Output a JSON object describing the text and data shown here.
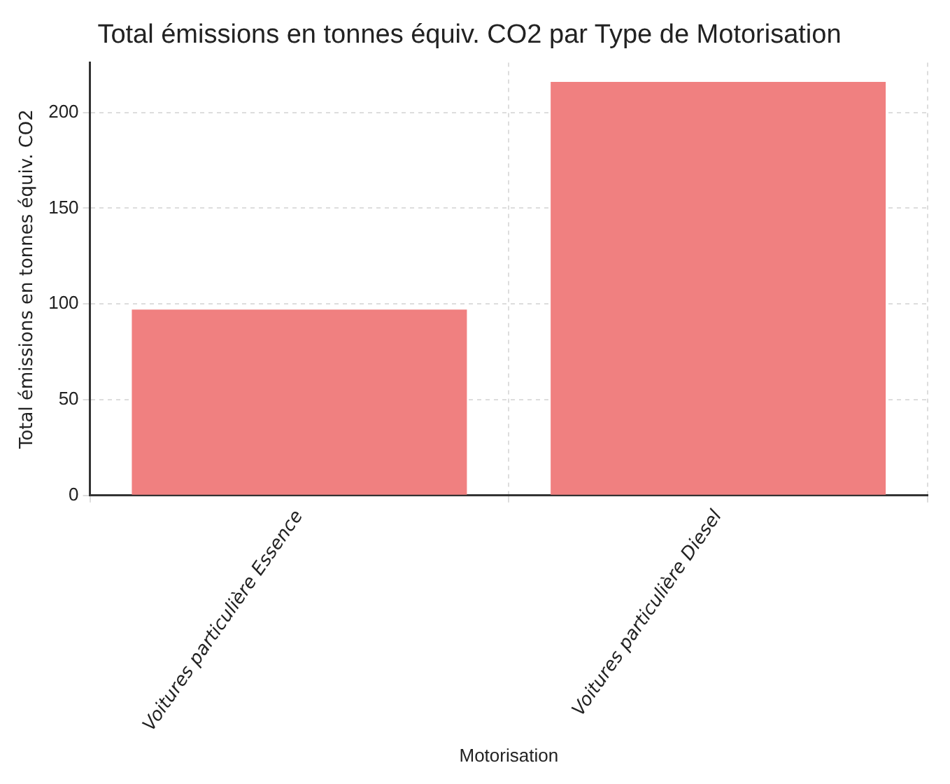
{
  "chart_data": {
    "type": "bar",
    "title": "Total émissions en tonnes équiv. CO2 par Type de Motorisation",
    "xlabel": "Motorisation",
    "ylabel": "Total émissions en tonnes équiv. CO2",
    "categories": [
      "Voitures particulière Essence",
      "Voitures particulière Diesel"
    ],
    "values": [
      97,
      216
    ],
    "color": "#f08080",
    "ylim": [
      0,
      226
    ],
    "yticks": [
      0,
      50,
      100,
      150,
      200
    ],
    "grid": true
  }
}
